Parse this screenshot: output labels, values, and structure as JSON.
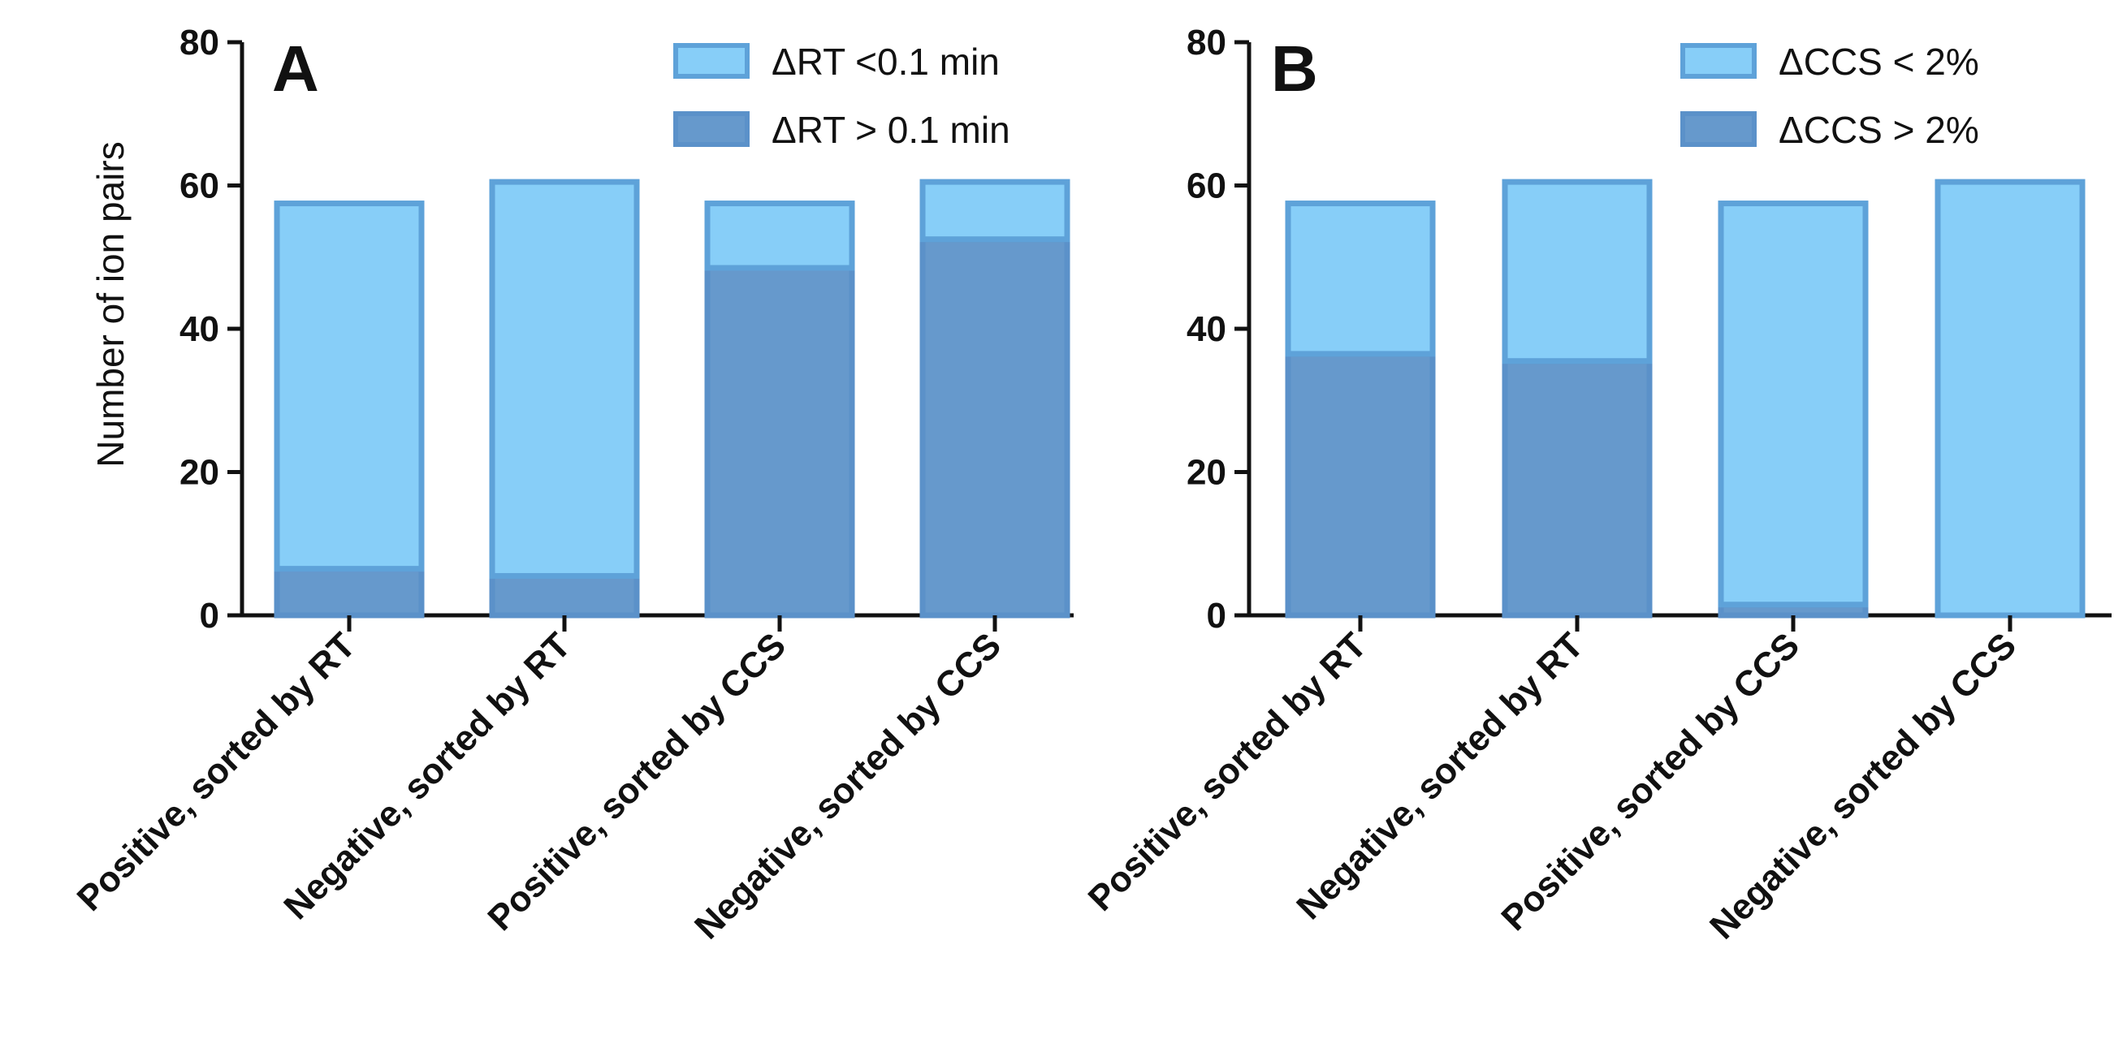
{
  "colors": {
    "light": "#87CEF8",
    "light_border": "#5EA2D9",
    "dark": "#6699CC",
    "dark_border": "#5B91C9",
    "axis": "#111111"
  },
  "chart_data": [
    {
      "type": "bar",
      "stacked": true,
      "panel": "A",
      "ylabel": "Number of ion pairs",
      "ylim": [
        0,
        80
      ],
      "yticks": [
        0,
        20,
        40,
        60,
        80
      ],
      "categories": [
        "Positive, sorted by RT",
        "Negative, sorted by RT",
        "Positive, sorted by CCS",
        "Negative, sorted by CCS"
      ],
      "series": [
        {
          "name": "ΔRT > 0.1 min",
          "role": "dark",
          "values": [
            6.5,
            5.5,
            48.5,
            52.5
          ]
        },
        {
          "name": "ΔRT <0.1 min",
          "role": "light",
          "values": [
            51,
            55,
            9,
            8
          ]
        }
      ],
      "legend": [
        "ΔRT <0.1 min",
        "ΔRT > 0.1 min"
      ],
      "legend_position": "top-right"
    },
    {
      "type": "bar",
      "stacked": true,
      "panel": "B",
      "ylabel": "",
      "ylim": [
        0,
        80
      ],
      "yticks": [
        0,
        20,
        40,
        60,
        80
      ],
      "categories": [
        "Positive, sorted by RT",
        "Negative, sorted by RT",
        "Positive, sorted by CCS",
        "Negative, sorted by CCS"
      ],
      "series": [
        {
          "name": "ΔCCS > 2%",
          "role": "dark",
          "values": [
            36.5,
            35.5,
            1.5,
            0
          ]
        },
        {
          "name": "ΔCCS < 2%",
          "role": "light",
          "values": [
            21,
            25,
            56,
            60.5
          ]
        }
      ],
      "legend": [
        "ΔCCS < 2%",
        "ΔCCS > 2%"
      ],
      "legend_position": "top-right"
    }
  ]
}
